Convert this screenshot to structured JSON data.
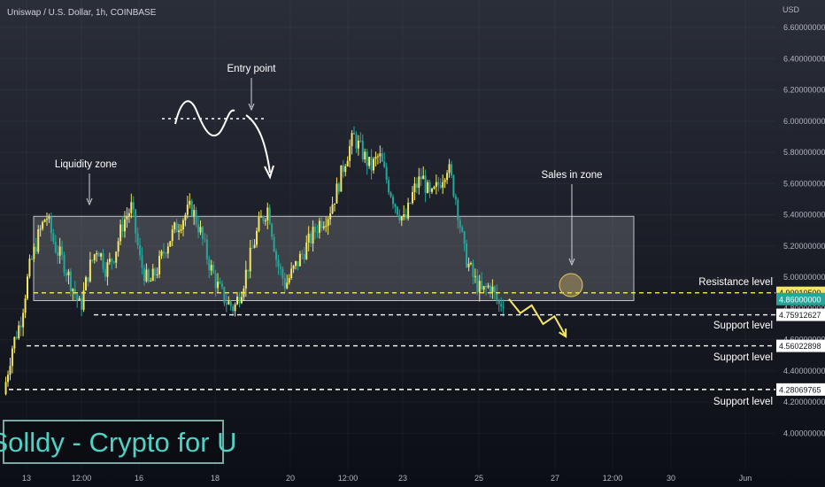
{
  "header": {
    "title": "Uniswap / U.S. Dollar, 1h, COINBASE"
  },
  "watermark": {
    "text": "Solldy - Crypto for U"
  },
  "chart_data": {
    "type": "candlestick",
    "symbol": "Uniswap / U.S. Dollar",
    "interval": "1h",
    "exchange": "COINBASE",
    "y_axis": {
      "unit": "USD",
      "range": [
        3.9,
        6.7
      ],
      "ticks": [
        "6.60000000",
        "6.40000000",
        "6.20000000",
        "6.00000000",
        "5.80000000",
        "5.60000000",
        "5.40000000",
        "5.20000000",
        "5.00000000",
        "4.80000000",
        "4.60000000",
        "4.40000000",
        "4.20000000",
        "4.00000000"
      ]
    },
    "x_axis": {
      "ticks": [
        "13",
        "12:00",
        "16",
        "18",
        "20",
        "12:00",
        "23",
        "25",
        "27",
        "12:00",
        "30",
        "Jun"
      ]
    },
    "price_labels": [
      {
        "value": "4.90010500",
        "color": "#f5e663"
      },
      {
        "value": "4.86000000",
        "color": "#26a69a"
      },
      {
        "value": "4.75912627",
        "color": "#ffffff"
      },
      {
        "value": "4.56022898",
        "color": "#ffffff"
      },
      {
        "value": "4.28069765",
        "color": "#ffffff"
      }
    ],
    "levels": [
      {
        "label": "Resistance level",
        "price": 4.9001,
        "style": "dashed",
        "color": "#f5e663"
      },
      {
        "label": "Support level",
        "price": 4.7591,
        "style": "dashed",
        "color": "#ffffff"
      },
      {
        "label": "Support level",
        "price": 4.5602,
        "style": "dashed",
        "color": "#ffffff"
      },
      {
        "label": "Support level",
        "price": 4.2807,
        "style": "dashed",
        "color": "#ffffff"
      }
    ],
    "annotations": [
      {
        "text": "Entry point"
      },
      {
        "text": "Liquidity zone"
      },
      {
        "text": "Sales in zone"
      }
    ],
    "liquidity_zone": {
      "price_top": 5.39,
      "price_bottom": 4.85
    },
    "price_path": [
      [
        0,
        4.25
      ],
      [
        1.5,
        4.55
      ],
      [
        3,
        4.72
      ],
      [
        4.5,
        5.05
      ],
      [
        6,
        5.25
      ],
      [
        7.5,
        5.4
      ],
      [
        9,
        5.2
      ],
      [
        10.5,
        5.1
      ],
      [
        12,
        4.95
      ],
      [
        13.5,
        4.8
      ],
      [
        15,
        5.05
      ],
      [
        16.5,
        5.2
      ],
      [
        18,
        5.05
      ],
      [
        19.5,
        5.15
      ],
      [
        21,
        5.35
      ],
      [
        22.5,
        5.45
      ],
      [
        24,
        5.1
      ],
      [
        25.5,
        4.95
      ],
      [
        27,
        5.05
      ],
      [
        28.5,
        5.2
      ],
      [
        30,
        5.3
      ],
      [
        31.5,
        5.38
      ],
      [
        33,
        5.45
      ],
      [
        34.5,
        5.3
      ],
      [
        36,
        5.1
      ],
      [
        37.5,
        4.95
      ],
      [
        39,
        4.85
      ],
      [
        40.5,
        4.8
      ],
      [
        42,
        4.95
      ],
      [
        43.5,
        5.15
      ],
      [
        45,
        5.35
      ],
      [
        46.5,
        5.45
      ],
      [
        48,
        5.1
      ],
      [
        49.5,
        4.95
      ],
      [
        51,
        5.05
      ],
      [
        52.5,
        5.15
      ],
      [
        54,
        5.25
      ],
      [
        55.5,
        5.35
      ],
      [
        57,
        5.4
      ],
      [
        58.5,
        5.55
      ],
      [
        60,
        5.75
      ],
      [
        61.5,
        5.9
      ],
      [
        63,
        5.8
      ],
      [
        64.5,
        5.7
      ],
      [
        66,
        5.78
      ],
      [
        67.5,
        5.6
      ],
      [
        69,
        5.45
      ],
      [
        70.5,
        5.35
      ],
      [
        72,
        5.55
      ],
      [
        73.5,
        5.65
      ],
      [
        75,
        5.5
      ],
      [
        76.5,
        5.6
      ],
      [
        78,
        5.72
      ],
      [
        79.5,
        5.5
      ],
      [
        81,
        5.15
      ],
      [
        82.5,
        5.0
      ],
      [
        84,
        4.9
      ],
      [
        85.5,
        4.95
      ],
      [
        87,
        4.82
      ],
      [
        88,
        4.86
      ]
    ],
    "x_span": [
      0,
      130
    ],
    "projection": [
      [
        88,
        4.86
      ],
      [
        90,
        4.77
      ],
      [
        92,
        4.82
      ],
      [
        94,
        4.7
      ],
      [
        96,
        4.75
      ],
      [
        98,
        4.62
      ]
    ]
  }
}
